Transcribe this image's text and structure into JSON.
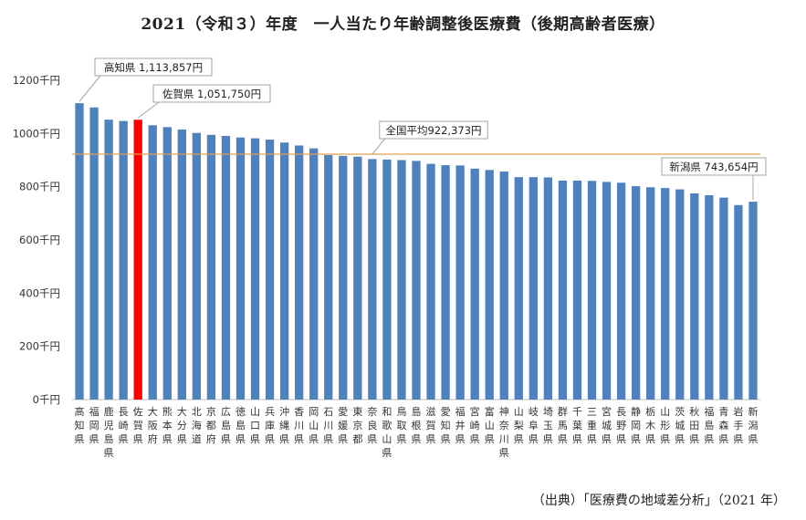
{
  "chart_data": {
    "type": "bar",
    "title": "2021（令和３）年度　一人当たり年齢調整後医療費（後期高齢者医療）",
    "source": "（出典）「医療費の地域差分析」（2021 年）",
    "y_unit_suffix": "千円",
    "ylim": [
      0,
      1200
    ],
    "yticks": [
      0,
      200,
      400,
      600,
      800,
      1000,
      1200
    ],
    "grid": false,
    "bar_color": "#4f81bd",
    "highlight_color": "#ff0000",
    "average_line_color": "#e0a050",
    "highlight_index": 4,
    "categories": [
      "高知県",
      "福岡県",
      "鹿児島県",
      "長崎県",
      "佐賀県",
      "大阪府",
      "熊本県",
      "大分県",
      "北海道",
      "京都府",
      "広島県",
      "徳島県",
      "山口県",
      "兵庫県",
      "沖縄県",
      "香川県",
      "岡山県",
      "石川県",
      "愛媛県",
      "東京都",
      "奈良県",
      "和歌山県",
      "鳥取県",
      "島根県",
      "滋賀県",
      "愛知県",
      "福井県",
      "宮崎県",
      "富山県",
      "神奈川県",
      "山梨県",
      "岐阜県",
      "埼玉県",
      "群馬県",
      "千葉県",
      "三重県",
      "宮城県",
      "長野県",
      "静岡県",
      "栃木県",
      "山形県",
      "茨城県",
      "秋田県",
      "福島県",
      "青森県",
      "岩手県",
      "新潟県"
    ],
    "values": [
      1113.857,
      1098,
      1052,
      1047,
      1051.75,
      1031,
      1024,
      1015,
      1002,
      995,
      991,
      985,
      982,
      977,
      966,
      955,
      944,
      919,
      916,
      913,
      904,
      902,
      900,
      897,
      886,
      881,
      880,
      868,
      863,
      857,
      836,
      836,
      835,
      823,
      823,
      822,
      818,
      815,
      802,
      798,
      795,
      790,
      775,
      768,
      759,
      731,
      743.654
    ],
    "average": {
      "value": 922.373,
      "label": "全国平均922,373円"
    },
    "callouts": [
      {
        "index": 0,
        "label": "高知県 1,113,857円"
      },
      {
        "index": 4,
        "label": "佐賀県 1,051,750円"
      },
      {
        "index": 46,
        "label": "新潟県 743,654円"
      }
    ]
  }
}
